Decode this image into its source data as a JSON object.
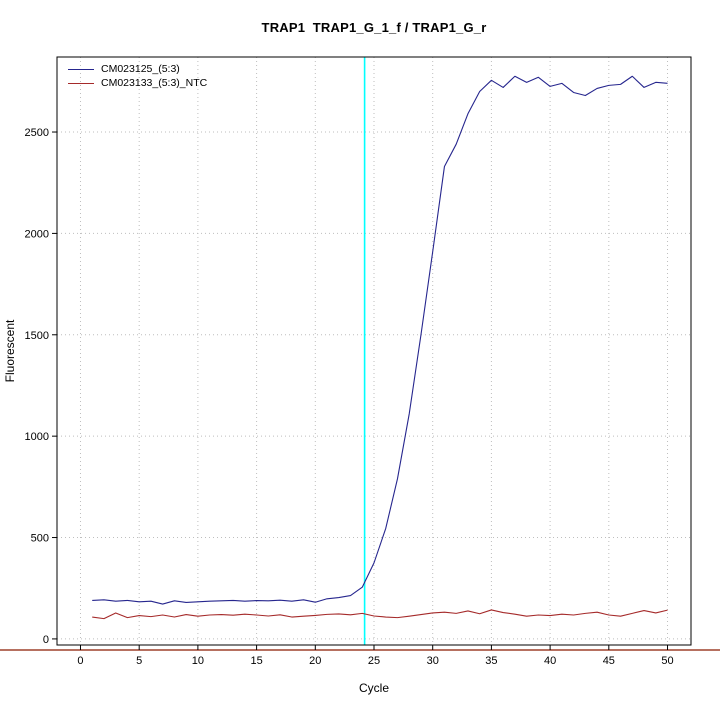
{
  "title": "TRAP1  TRAP1_G_1_f / TRAP1_G_r",
  "chart_data": {
    "type": "line",
    "title": "TRAP1  TRAP1_G_1_f / TRAP1_G_r",
    "xlabel": "Cycle",
    "ylabel": "Fluorescent",
    "xlim": [
      -2,
      52
    ],
    "ylim": [
      -30,
      2870
    ],
    "xticks": [
      0,
      5,
      10,
      15,
      20,
      25,
      30,
      35,
      40,
      45,
      50
    ],
    "yticks": [
      0,
      500,
      1000,
      1500,
      2000,
      2500
    ],
    "grid": true,
    "grid_color": "#BEBEBE",
    "legend_position": "top-left",
    "threshold_line": {
      "x": 24.2,
      "color": "#00FFFF"
    },
    "axis_underline": {
      "color": "#8B1A00"
    },
    "x": [
      1,
      2,
      3,
      4,
      5,
      6,
      7,
      8,
      9,
      10,
      11,
      12,
      13,
      14,
      15,
      16,
      17,
      18,
      19,
      20,
      21,
      22,
      23,
      24,
      25,
      26,
      27,
      28,
      29,
      30,
      31,
      32,
      33,
      34,
      35,
      36,
      37,
      38,
      39,
      40,
      41,
      42,
      43,
      44,
      45,
      46,
      47,
      48,
      49,
      50
    ],
    "series": [
      {
        "name": "CM023125_(5:3)",
        "color": "#26268E",
        "values": [
          190,
          193,
          186,
          190,
          183,
          186,
          172,
          188,
          180,
          183,
          186,
          188,
          190,
          186,
          189,
          188,
          191,
          186,
          193,
          181,
          198,
          204,
          214,
          255,
          375,
          545,
          790,
          1110,
          1500,
          1910,
          2330,
          2440,
          2590,
          2700,
          2755,
          2720,
          2775,
          2745,
          2770,
          2725,
          2740,
          2695,
          2680,
          2715,
          2730,
          2735,
          2775,
          2720,
          2745,
          2740
        ]
      },
      {
        "name": "CM023133_(5:3)_NTC",
        "color": "#A52A2A",
        "values": [
          108,
          100,
          128,
          105,
          115,
          110,
          118,
          108,
          120,
          112,
          118,
          120,
          117,
          122,
          118,
          113,
          119,
          108,
          112,
          116,
          121,
          123,
          119,
          126,
          113,
          108,
          105,
          112,
          120,
          128,
          132,
          126,
          138,
          124,
          143,
          130,
          122,
          112,
          118,
          115,
          122,
          118,
          126,
          132,
          118,
          112,
          126,
          140,
          128,
          142
        ]
      }
    ]
  }
}
